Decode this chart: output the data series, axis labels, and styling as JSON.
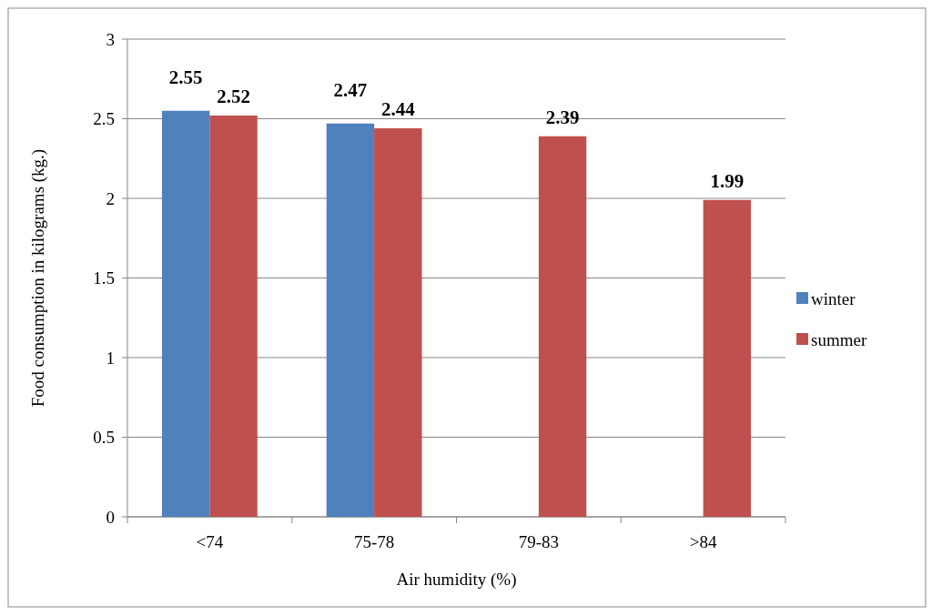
{
  "chart_data": {
    "type": "bar",
    "xlabel": "Air humidity (%)",
    "ylabel": "Food consumption in kilograms (kg.)",
    "categories": [
      "<74",
      "75-78",
      "79-83",
      ">84"
    ],
    "series": [
      {
        "name": "winter",
        "color": "#4f81bd",
        "values": [
          2.55,
          2.47,
          null,
          null
        ]
      },
      {
        "name": "summer",
        "color": "#c0504d",
        "values": [
          2.52,
          2.44,
          2.39,
          1.99
        ]
      }
    ],
    "ylim": [
      0,
      3
    ],
    "yticks": [
      0,
      0.5,
      1,
      1.5,
      2,
      2.5,
      3
    ],
    "grid": "y",
    "legend": "right",
    "data_labels": true
  }
}
